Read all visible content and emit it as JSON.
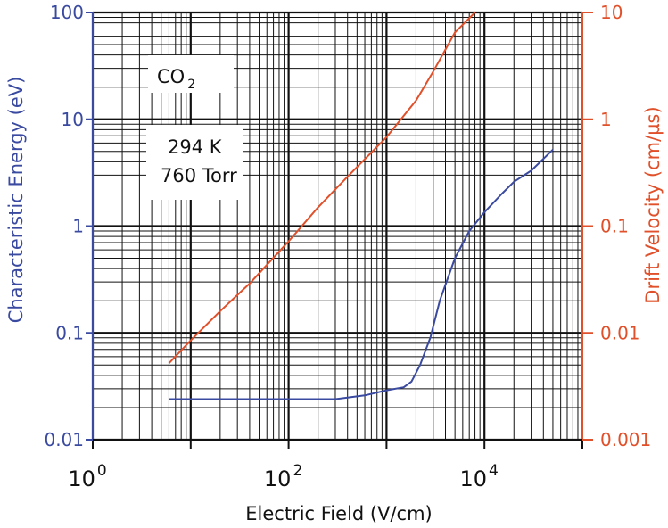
{
  "chart_data": {
    "type": "line",
    "xlabel": "Electric Field (V/cm)",
    "ylabel_left": "Characteristic Energy (eV)",
    "ylabel_right": "Drift Velocity (cm/µs)",
    "x_scale": "log",
    "y_scale_left": "log",
    "y_scale_right": "log",
    "xlim": [
      1,
      100000
    ],
    "ylim_left": [
      0.01,
      100
    ],
    "ylim_right": [
      0.001,
      10
    ],
    "grid": true,
    "x_ticks": [
      {
        "value": 1,
        "base": "10",
        "exp": "0"
      },
      {
        "value": 100,
        "base": "10",
        "exp": "2"
      },
      {
        "value": 10000,
        "base": "10",
        "exp": "4"
      }
    ],
    "y_ticks_left": [
      {
        "value": 0.01,
        "label": "0.01"
      },
      {
        "value": 0.1,
        "label": "0.1"
      },
      {
        "value": 1,
        "label": "1"
      },
      {
        "value": 10,
        "label": "10"
      },
      {
        "value": 100,
        "label": "100"
      }
    ],
    "y_ticks_right": [
      {
        "value": 0.001,
        "label": "0.001"
      },
      {
        "value": 0.01,
        "label": "0.01"
      },
      {
        "value": 0.1,
        "label": "0.1"
      },
      {
        "value": 1,
        "label": "1"
      },
      {
        "value": 10,
        "label": "10"
      }
    ],
    "annotations": {
      "gas_main": "CO",
      "gas_sub": "2",
      "temperature": "294 K",
      "pressure": "760 Torr"
    },
    "series": [
      {
        "axis": "left",
        "color": "#3a4aa0",
        "x": [
          6,
          30,
          100,
          300,
          600,
          1000,
          1500,
          1800,
          2200,
          2800,
          3500,
          5000,
          7000,
          10000,
          15000,
          20000,
          30000,
          50000
        ],
        "y": [
          0.024,
          0.024,
          0.024,
          0.024,
          0.026,
          0.029,
          0.031,
          0.035,
          0.05,
          0.09,
          0.2,
          0.5,
          0.9,
          1.35,
          2.0,
          2.6,
          3.3,
          5.2
        ]
      },
      {
        "axis": "right",
        "color": "#e0502a",
        "x": [
          6,
          10,
          20,
          40,
          100,
          200,
          400,
          1000,
          2000,
          3000,
          5000,
          8000
        ],
        "y": [
          0.0052,
          0.0085,
          0.016,
          0.029,
          0.072,
          0.15,
          0.29,
          0.68,
          1.5,
          2.8,
          6.5,
          10
        ]
      }
    ]
  }
}
